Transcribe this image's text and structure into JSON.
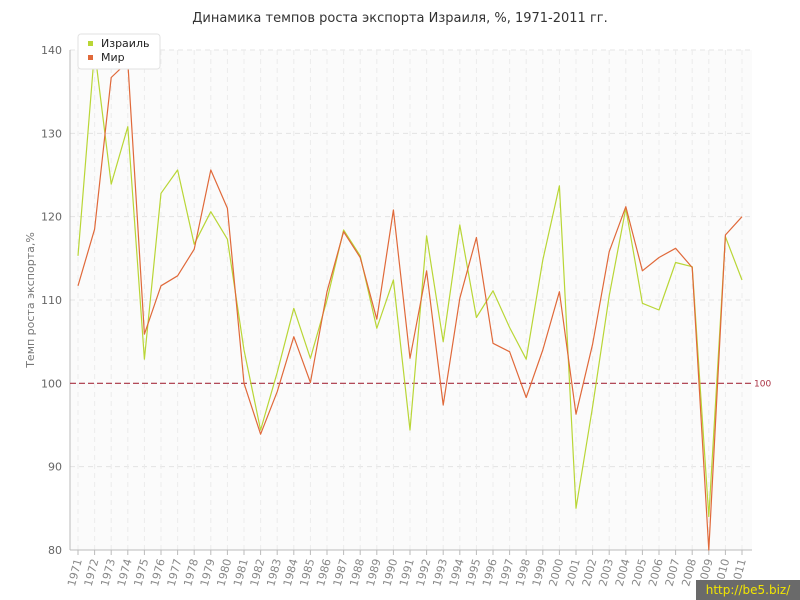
{
  "colors": {
    "israel": "#b9d636",
    "world": "#e0693a",
    "reference": "#aa3344"
  },
  "chart_data": {
    "type": "line",
    "title": "Динамика темпов роста экспорта Израиля, %, 1971-2011 гг.",
    "ylabel": "Темп роста экспорта,%",
    "xlabel": "",
    "ylim": [
      80,
      140
    ],
    "yticks": [
      80,
      90,
      100,
      110,
      120,
      130,
      140
    ],
    "grid": true,
    "legend_position": "top-left",
    "categories": [
      "1971",
      "1972",
      "1973",
      "1974",
      "1975",
      "1976",
      "1977",
      "1978",
      "1979",
      "1980",
      "1981",
      "1982",
      "1983",
      "1984",
      "1985",
      "1986",
      "1987",
      "1988",
      "1989",
      "1990",
      "1991",
      "1992",
      "1993",
      "1994",
      "1995",
      "1996",
      "1997",
      "1998",
      "1999",
      "2000",
      "2001",
      "2002",
      "2003",
      "2004",
      "2005",
      "2006",
      "2007",
      "2008",
      "2009",
      "2010",
      "2011"
    ],
    "series": [
      {
        "name": "Израиль",
        "values": [
          115.3,
          140,
          123.9,
          130.8,
          102.9,
          122.8,
          125.6,
          116.7,
          120.6,
          117.3,
          104.0,
          94.4,
          101.3,
          109.0,
          103.0,
          110.0,
          118.4,
          115.3,
          106.6,
          112.4,
          94.4,
          117.7,
          105.0,
          119.0,
          107.9,
          111.1,
          106.7,
          102.9,
          114.8,
          123.7,
          85.0,
          97.2,
          110.5,
          121.0,
          109.6,
          108.8,
          114.5,
          114.0,
          84.0,
          117.6,
          112.4
        ]
      },
      {
        "name": "Мир",
        "values": [
          111.7,
          118.5,
          136.7,
          138.6,
          105.9,
          111.7,
          112.9,
          116.1,
          125.6,
          121.0,
          100.0,
          93.9,
          99.0,
          105.6,
          100.1,
          111.0,
          118.2,
          115.1,
          107.7,
          120.8,
          103.0,
          113.5,
          97.4,
          110.2,
          117.5,
          104.8,
          103.8,
          98.3,
          104.0,
          111.0,
          96.3,
          104.7,
          115.8,
          121.2,
          113.5,
          115.1,
          116.2,
          113.9,
          80.0,
          117.8,
          120.0
        ]
      }
    ],
    "reference_line": {
      "value": 100,
      "label": "100"
    }
  }
}
